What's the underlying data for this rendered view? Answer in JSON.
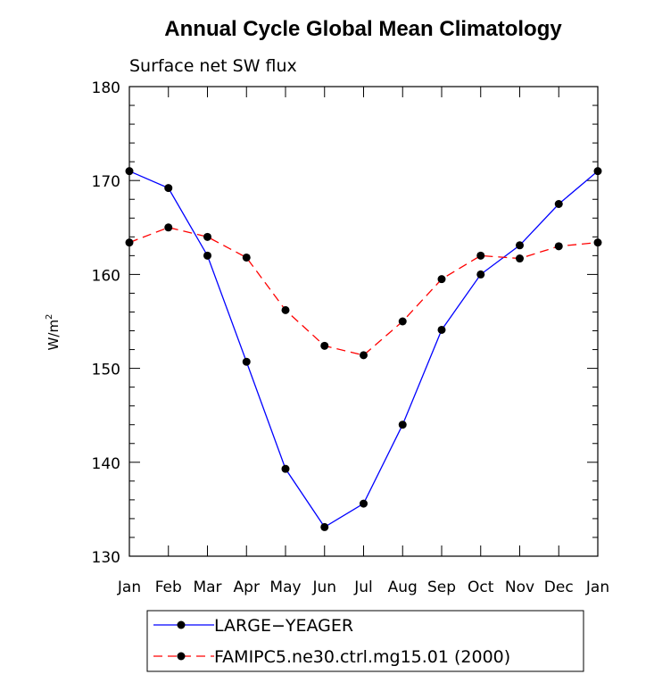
{
  "chart_data": {
    "type": "line",
    "title": "Annual Cycle Global Mean Climatology",
    "subtitle": "Surface net SW flux",
    "xlabel": "",
    "ylabel": "W/m",
    "ylabel_superscript": "2",
    "categories": [
      "Jan",
      "Feb",
      "Mar",
      "Apr",
      "May",
      "Jun",
      "Jul",
      "Aug",
      "Sep",
      "Oct",
      "Nov",
      "Dec",
      "Jan"
    ],
    "ylim": [
      130,
      180
    ],
    "yticks": [
      130,
      140,
      150,
      160,
      170,
      180
    ],
    "grid": false,
    "legend_position": "bottom",
    "series": [
      {
        "name": "LARGE−YEAGER",
        "color": "#0000ff",
        "dash": "solid",
        "marker": "filled-circle",
        "values": [
          171.0,
          169.2,
          162.0,
          150.7,
          139.3,
          133.1,
          135.6,
          144.0,
          154.1,
          160.0,
          163.1,
          167.5,
          171.0
        ]
      },
      {
        "name": "FAMIPC5.ne30.ctrl.mg15.01 (2000)",
        "color": "#ff0000",
        "dash": "dashed",
        "marker": "filled-circle",
        "values": [
          163.4,
          165.0,
          164.0,
          161.8,
          156.2,
          152.4,
          151.4,
          155.0,
          159.5,
          162.0,
          161.7,
          163.0,
          163.4
        ]
      }
    ]
  }
}
